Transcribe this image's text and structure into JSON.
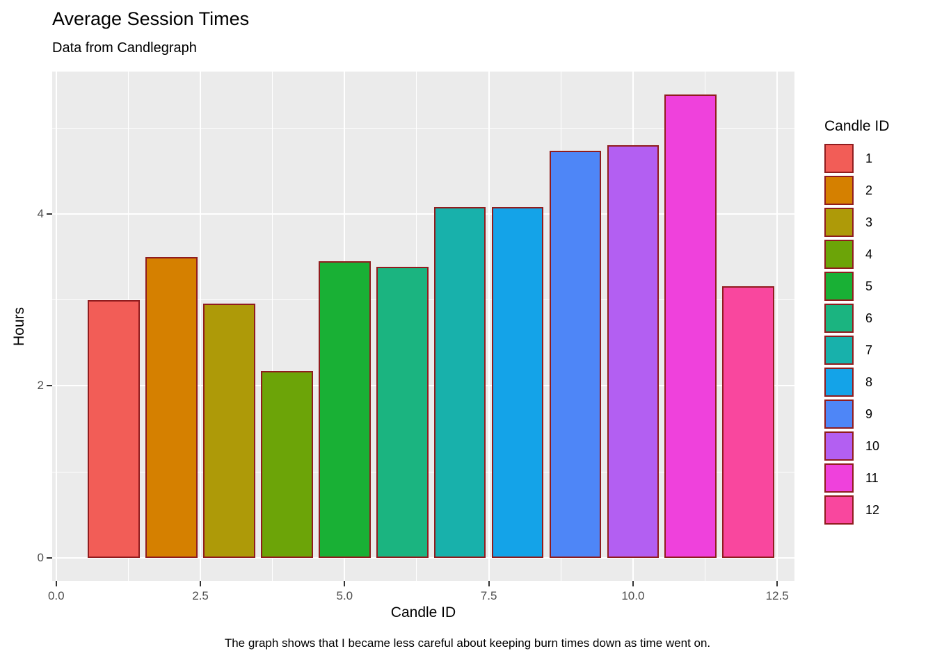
{
  "caption": "The graph shows that I became less careful about keeping burn times down as time went on.",
  "chart_data": {
    "type": "bar",
    "title": "Average Session Times",
    "subtitle": "Data from Candlegraph",
    "caption": "The graph shows that I became less careful about keeping burn times down as time went on.",
    "xlabel": "Candle ID",
    "ylabel": "Hours",
    "categories": [
      "1",
      "2",
      "3",
      "4",
      "5",
      "6",
      "7",
      "8",
      "9",
      "10",
      "11",
      "12"
    ],
    "x_positions": [
      1,
      2,
      3,
      4,
      5,
      6,
      7,
      8,
      9,
      10,
      11,
      12
    ],
    "values": [
      3.0,
      3.5,
      2.96,
      2.17,
      3.45,
      3.39,
      4.08,
      4.08,
      4.74,
      4.8,
      5.39,
      3.16
    ],
    "bar_width": 0.9,
    "colors": [
      "#F25D57",
      "#D58000",
      "#AE9A08",
      "#6CA408",
      "#19B035",
      "#1BB480",
      "#18B1AB",
      "#14A3E8",
      "#4E86F7",
      "#B35FF2",
      "#EF41DC",
      "#F9479E"
    ],
    "bar_border_color": "#901C1E",
    "panel_bg": "#EBEBEB",
    "grid_color": "#FFFFFF",
    "grid": true,
    "xlim": [
      -0.07,
      12.8
    ],
    "ylim": [
      -0.27,
      5.66
    ],
    "x_major_ticks": [
      0.0,
      2.5,
      5.0,
      7.5,
      10.0,
      12.5
    ],
    "x_tick_labels": [
      "0.0",
      "2.5",
      "5.0",
      "7.5",
      "10.0",
      "12.5"
    ],
    "x_minor_ticks": [
      1.25,
      3.75,
      6.25,
      8.75,
      11.25
    ],
    "y_major_ticks": [
      0,
      2,
      4
    ],
    "y_tick_labels": [
      "0",
      "2",
      "4"
    ],
    "y_minor_ticks": [
      1,
      3,
      5
    ],
    "legend_position": "right",
    "legend": {
      "title": "Candle ID",
      "labels": [
        "1",
        "2",
        "3",
        "4",
        "5",
        "6",
        "7",
        "8",
        "9",
        "10",
        "11",
        "12"
      ]
    }
  }
}
